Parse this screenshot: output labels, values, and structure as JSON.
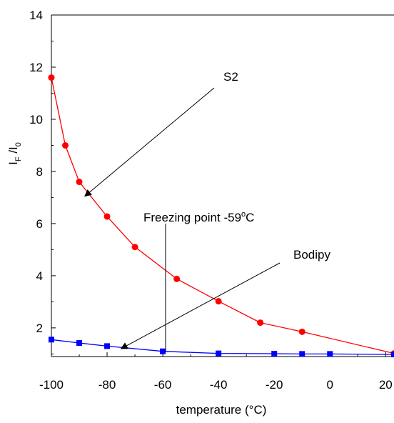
{
  "chart_data": {
    "type": "line",
    "title": "",
    "xlabel": "temperature (°C)",
    "ylabel": {
      "main1": "I",
      "sub1": "F",
      "main2": " /I",
      "sub2": "0"
    },
    "xlim": [
      -100,
      23
    ],
    "ylim": [
      0.9,
      14
    ],
    "xticks": [
      -100,
      -80,
      -60,
      -40,
      -20,
      0,
      20
    ],
    "yticks": [
      2,
      4,
      6,
      8,
      10,
      12,
      14
    ],
    "grid": false,
    "series": [
      {
        "name": "S2",
        "color": "#ff0000",
        "marker": "circle",
        "x": [
          -100,
          -95,
          -90,
          -80,
          -70,
          -55,
          -40,
          -25,
          -10,
          23
        ],
        "y": [
          11.6,
          9.0,
          7.6,
          6.27,
          5.1,
          3.88,
          3.02,
          2.2,
          1.85,
          1.02
        ]
      },
      {
        "name": "Bodipy",
        "color": "#0000ff",
        "marker": "square",
        "x": [
          -100,
          -90,
          -80,
          -60,
          -40,
          -20,
          -10,
          0,
          23
        ],
        "y": [
          1.55,
          1.42,
          1.3,
          1.1,
          1.02,
          1.01,
          1.0,
          1.0,
          0.98
        ]
      }
    ],
    "annotations": [
      {
        "main": "Freezing point -59",
        "sup": "o",
        "tail": "C",
        "vline_x": -59
      }
    ]
  }
}
